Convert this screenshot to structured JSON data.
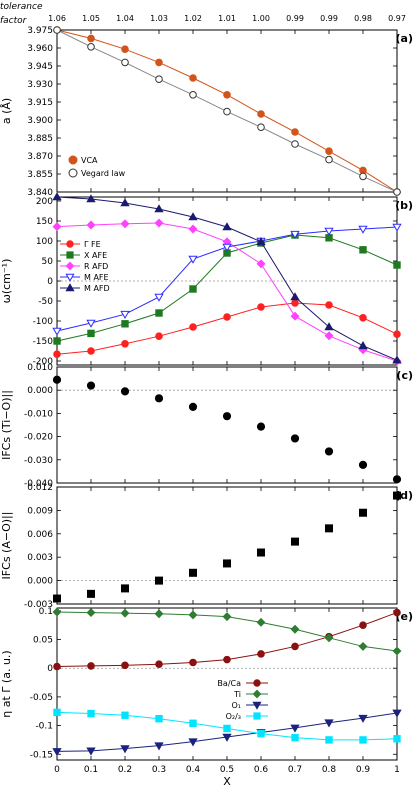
{
  "header": {
    "tolerance_label": "tolerance",
    "factor_label": "factor",
    "tolerance_values": [
      "1.06",
      "1.05",
      "1.04",
      "1.03",
      "1.02",
      "1.01",
      "1.00",
      "0.99",
      "0.99",
      "0.98",
      "0.97"
    ]
  },
  "x_axis": {
    "label": "X",
    "ticks": [
      0,
      0.1,
      0.2,
      0.3,
      0.4,
      0.5,
      0.6,
      0.7,
      0.8,
      0.9,
      1
    ],
    "tick_labels": [
      "0",
      "0.1",
      "0.2",
      "0.3",
      "0.4",
      "0.5",
      "0.6",
      "0.7",
      "0.8",
      "0.9",
      "1"
    ]
  },
  "chart_data": [
    {
      "panel": "(a)",
      "type": "line",
      "ylabel": "a (Å)",
      "ylim": [
        3.84,
        3.975
      ],
      "yticks": [
        3.84,
        3.855,
        3.87,
        3.885,
        3.9,
        3.915,
        3.93,
        3.945,
        3.96,
        3.975
      ],
      "ytick_labels": [
        "3.840",
        "3.855",
        "3.870",
        "3.885",
        "3.900",
        "3.915",
        "3.930",
        "3.945",
        "3.960",
        "3.975"
      ],
      "legend_position": "bottom-left",
      "x": [
        0,
        0.1,
        0.2,
        0.3,
        0.4,
        0.5,
        0.6,
        0.7,
        0.8,
        0.9,
        1
      ],
      "series": [
        {
          "name": "VCA",
          "color": "#d2541a",
          "marker": "circle-filled",
          "values": [
            3.975,
            3.968,
            3.959,
            3.948,
            3.935,
            3.921,
            3.905,
            3.89,
            3.874,
            3.858,
            3.84
          ]
        },
        {
          "name": "Vegard law",
          "color": "#888888",
          "marker": "circle-open",
          "values": [
            3.975,
            3.961,
            3.948,
            3.934,
            3.921,
            3.907,
            3.894,
            3.88,
            3.867,
            3.853,
            3.84
          ]
        }
      ]
    },
    {
      "panel": "(b)",
      "type": "line",
      "ylabel": "ω(cm⁻¹)",
      "ylim": [
        -210,
        210
      ],
      "yticks": [
        -200,
        -150,
        -100,
        -50,
        0,
        50,
        100,
        150,
        200
      ],
      "ytick_labels": [
        "-200",
        "-150",
        "-100",
        "-50",
        "0",
        "50",
        "100",
        "150",
        "200"
      ],
      "legend_position": "left",
      "x": [
        0,
        0.1,
        0.2,
        0.3,
        0.4,
        0.5,
        0.6,
        0.7,
        0.8,
        0.9,
        1
      ],
      "series": [
        {
          "name": "Γ  FE",
          "color": "#ff2020",
          "marker": "circle-filled",
          "values": [
            -183,
            -175,
            -157,
            -138,
            -115,
            -90,
            -65,
            -55,
            -60,
            -92,
            -133
          ]
        },
        {
          "name": "X  AFE",
          "color": "#1e7a1e",
          "marker": "square-filled",
          "values": [
            -150,
            -131,
            -107,
            -80,
            -20,
            70,
            95,
            115,
            108,
            78,
            40
          ]
        },
        {
          "name": "R  AFD",
          "color": "#ff40ff",
          "marker": "diamond-filled",
          "values": [
            136,
            140,
            143,
            145,
            130,
            98,
            43,
            -88,
            -137,
            -172,
            -200
          ]
        },
        {
          "name": "M  AFE",
          "color": "#2b2bff",
          "marker": "triangle-down-open",
          "values": [
            -125,
            -105,
            -83,
            -40,
            55,
            85,
            100,
            117,
            125,
            130,
            135
          ]
        },
        {
          "name": "M  AFD",
          "color": "#1a1a6e",
          "marker": "triangle-up-filled",
          "values": [
            210,
            205,
            195,
            180,
            160,
            135,
            98,
            -40,
            -115,
            -162,
            -198
          ]
        }
      ]
    },
    {
      "panel": "(c)",
      "type": "scatter",
      "ylabel": "IFCs (Ti−O)||",
      "ylim": [
        -0.04,
        0.01
      ],
      "yticks": [
        -0.04,
        -0.03,
        -0.02,
        -0.01,
        0.0,
        0.01
      ],
      "ytick_labels": [
        "-0.040",
        "-0.030",
        "-0.020",
        "-0.010",
        "0.000",
        "0.010"
      ],
      "zero_line": true,
      "x": [
        0,
        0.1,
        0.2,
        0.3,
        0.4,
        0.5,
        0.6,
        0.7,
        0.8,
        0.9,
        1
      ],
      "series": [
        {
          "color": "#000000",
          "marker": "circle-filled",
          "values": [
            0.0045,
            0.002,
            -0.0005,
            -0.0035,
            -0.0072,
            -0.0112,
            -0.0157,
            -0.0208,
            -0.0264,
            -0.0322,
            -0.0384
          ]
        }
      ]
    },
    {
      "panel": "(d)",
      "type": "scatter",
      "ylabel": "IFCs (A−O)||",
      "ylim": [
        -0.003,
        0.012
      ],
      "yticks": [
        -0.003,
        0.0,
        0.003,
        0.006,
        0.009,
        0.012
      ],
      "ytick_labels": [
        "-0.003",
        "0.000",
        "0.003",
        "0.006",
        "0.009",
        "0.012"
      ],
      "zero_line": true,
      "x": [
        0,
        0.1,
        0.2,
        0.3,
        0.4,
        0.5,
        0.6,
        0.7,
        0.8,
        0.9,
        1
      ],
      "series": [
        {
          "color": "#000000",
          "marker": "square-filled",
          "values": [
            -0.0023,
            -0.0017,
            -0.001,
            0.0,
            0.001,
            0.0022,
            0.0036,
            0.005,
            0.0067,
            0.0087,
            0.0109
          ]
        }
      ]
    },
    {
      "panel": "(e)",
      "type": "line",
      "ylabel": "η at Γ (a. u.)",
      "ylim": [
        -0.16,
        0.105
      ],
      "yticks": [
        -0.15,
        -0.1,
        -0.05,
        0,
        0.05,
        0.1
      ],
      "ytick_labels": [
        "-0.15",
        "-0.1",
        "-0.05",
        "0",
        "0.05",
        "0.1"
      ],
      "zero_line": true,
      "legend_position": "center-right",
      "x": [
        0,
        0.1,
        0.2,
        0.3,
        0.4,
        0.5,
        0.6,
        0.7,
        0.8,
        0.9,
        1
      ],
      "series": [
        {
          "name": "Ba/Ca",
          "color": "#8b1010",
          "marker": "circle-filled",
          "values": [
            0.003,
            0.004,
            0.005,
            0.007,
            0.01,
            0.015,
            0.025,
            0.038,
            0.055,
            0.075,
            0.097
          ]
        },
        {
          "name": "Ti",
          "color": "#2e7d32",
          "marker": "diamond-filled",
          "values": [
            0.098,
            0.097,
            0.096,
            0.095,
            0.093,
            0.09,
            0.08,
            0.068,
            0.053,
            0.038,
            0.03
          ]
        },
        {
          "name": "O₁",
          "color": "#1a237e",
          "marker": "triangle-down-filled",
          "values": [
            -0.145,
            -0.144,
            -0.14,
            -0.135,
            -0.128,
            -0.12,
            -0.112,
            -0.104,
            -0.095,
            -0.087,
            -0.078
          ]
        },
        {
          "name": "O₂/₃",
          "color": "#00e5ff",
          "marker": "square-filled",
          "values": [
            -0.077,
            -0.079,
            -0.082,
            -0.088,
            -0.096,
            -0.105,
            -0.114,
            -0.121,
            -0.125,
            -0.125,
            -0.123
          ]
        }
      ]
    }
  ]
}
